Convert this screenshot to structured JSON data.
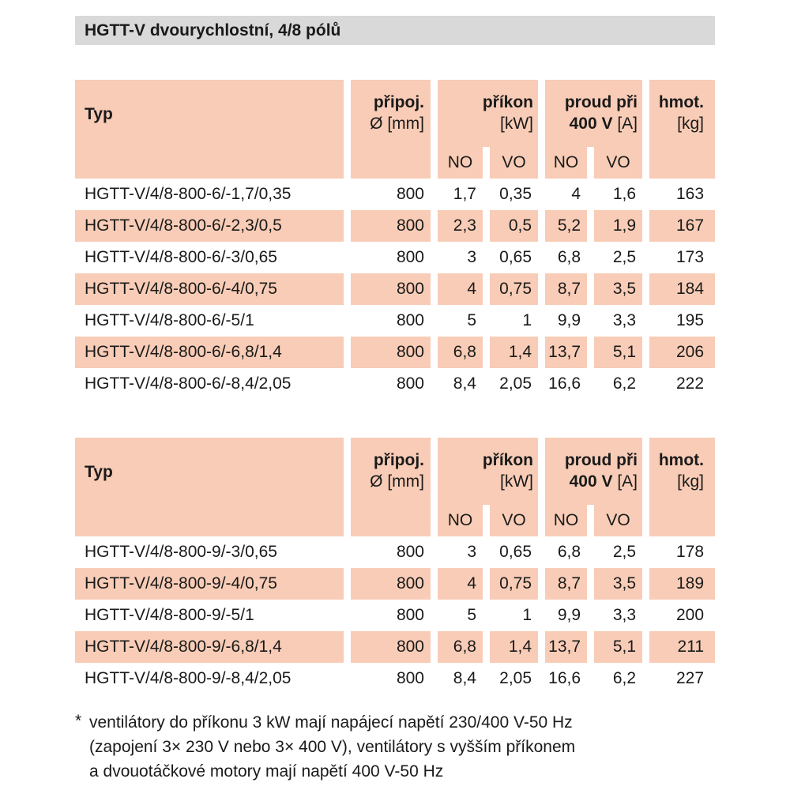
{
  "page_title": "HGTT-V dvourychlostní, 4/8 pólů",
  "colors": {
    "salmon": "#f8ccb6",
    "titlebg": "#d9d9d9",
    "text": "#1a1a1a"
  },
  "header": {
    "typ": "Typ",
    "pripoj_line1": "připoj.",
    "pripoj_line2": "Ø [mm]",
    "prikon_line1": "příkon",
    "prikon_line2": "[kW]",
    "proud_line1": "proud při",
    "proud_line2_bold": "400 V",
    "proud_line2_unit": " [A]",
    "hmot_line1": "hmot.",
    "hmot_line2": "[kg]",
    "no": "NO",
    "vo": "VO"
  },
  "table1": {
    "rows": [
      {
        "typ": "HGTT-V/4/8-800-6/-1,7/0,35",
        "pripoj": "800",
        "prikon_no": "1,7",
        "prikon_vo": "0,35",
        "proud_no": "4",
        "proud_vo": "1,6",
        "hmot": "163"
      },
      {
        "typ": "HGTT-V/4/8-800-6/-2,3/0,5",
        "pripoj": "800",
        "prikon_no": "2,3",
        "prikon_vo": "0,5",
        "proud_no": "5,2",
        "proud_vo": "1,9",
        "hmot": "167"
      },
      {
        "typ": "HGTT-V/4/8-800-6/-3/0,65",
        "pripoj": "800",
        "prikon_no": "3",
        "prikon_vo": "0,65",
        "proud_no": "6,8",
        "proud_vo": "2,5",
        "hmot": "173"
      },
      {
        "typ": "HGTT-V/4/8-800-6/-4/0,75",
        "pripoj": "800",
        "prikon_no": "4",
        "prikon_vo": "0,75",
        "proud_no": "8,7",
        "proud_vo": "3,5",
        "hmot": "184"
      },
      {
        "typ": "HGTT-V/4/8-800-6/-5/1",
        "pripoj": "800",
        "prikon_no": "5",
        "prikon_vo": "1",
        "proud_no": "9,9",
        "proud_vo": "3,3",
        "hmot": "195"
      },
      {
        "typ": "HGTT-V/4/8-800-6/-6,8/1,4",
        "pripoj": "800",
        "prikon_no": "6,8",
        "prikon_vo": "1,4",
        "proud_no": "13,7",
        "proud_vo": "5,1",
        "hmot": "206"
      },
      {
        "typ": "HGTT-V/4/8-800-6/-8,4/2,05",
        "pripoj": "800",
        "prikon_no": "8,4",
        "prikon_vo": "2,05",
        "proud_no": "16,6",
        "proud_vo": "6,2",
        "hmot": "222"
      }
    ]
  },
  "table2": {
    "rows": [
      {
        "typ": "HGTT-V/4/8-800-9/-3/0,65",
        "pripoj": "800",
        "prikon_no": "3",
        "prikon_vo": "0,65",
        "proud_no": "6,8",
        "proud_vo": "2,5",
        "hmot": "178"
      },
      {
        "typ": "HGTT-V/4/8-800-9/-4/0,75",
        "pripoj": "800",
        "prikon_no": "4",
        "prikon_vo": "0,75",
        "proud_no": "8,7",
        "proud_vo": "3,5",
        "hmot": "189"
      },
      {
        "typ": "HGTT-V/4/8-800-9/-5/1",
        "pripoj": "800",
        "prikon_no": "5",
        "prikon_vo": "1",
        "proud_no": "9,9",
        "proud_vo": "3,3",
        "hmot": "200"
      },
      {
        "typ": "HGTT-V/4/8-800-9/-6,8/1,4",
        "pripoj": "800",
        "prikon_no": "6,8",
        "prikon_vo": "1,4",
        "proud_no": "13,7",
        "proud_vo": "5,1",
        "hmot": "211"
      },
      {
        "typ": "HGTT-V/4/8-800-9/-8,4/2,05",
        "pripoj": "800",
        "prikon_no": "8,4",
        "prikon_vo": "2,05",
        "proud_no": "16,6",
        "proud_vo": "6,2",
        "hmot": "227"
      }
    ]
  },
  "footnote": {
    "star": "*",
    "lines": [
      "ventilátory do příkonu 3 kW mají napájecí napětí 230/400 V-50 Hz",
      "(zapojení 3× 230 V nebo 3× 400 V), ventilátory s vyšším příkonem",
      "a dvouotáčkové motory mají napětí 400 V-50 Hz"
    ]
  }
}
